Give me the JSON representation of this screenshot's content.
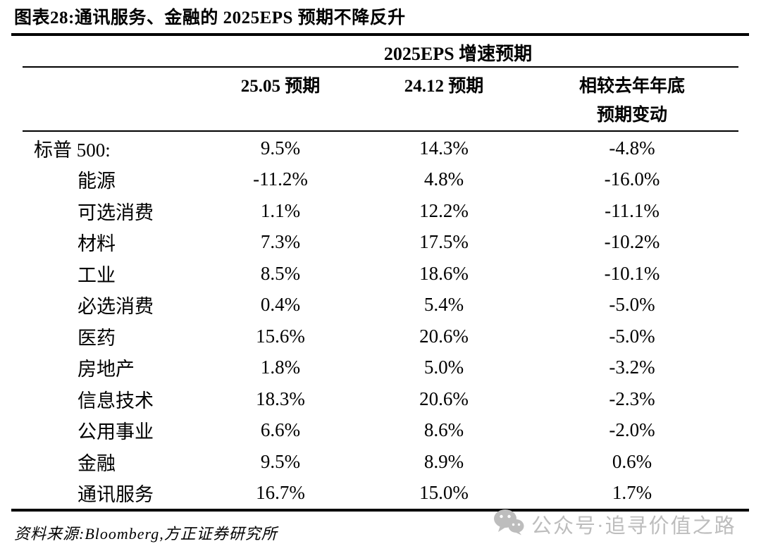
{
  "figure": {
    "title": "图表28:通讯服务、金融的 2025EPS 预期不降反升"
  },
  "chart_data": {
    "type": "table",
    "title": "图表28:通讯服务、金融的 2025EPS 预期不降反升",
    "group_header": "2025EPS 增速预期",
    "columns": [
      "25.05 预期",
      "24.12 预期",
      "相较去年年底 预期变动"
    ],
    "row_labels": [
      "标普 500:",
      "能源",
      "可选消费",
      "材料",
      "工业",
      "必选消费",
      "医药",
      "房地产",
      "信息技术",
      "公用事业",
      "金融",
      "通讯服务"
    ],
    "rows": [
      [
        "9.5%",
        "14.3%",
        "-4.8%"
      ],
      [
        "-11.2%",
        "4.8%",
        "-16.0%"
      ],
      [
        "1.1%",
        "12.2%",
        "-11.1%"
      ],
      [
        "7.3%",
        "17.5%",
        "-10.2%"
      ],
      [
        "8.5%",
        "18.6%",
        "-10.1%"
      ],
      [
        "0.4%",
        "5.4%",
        "-5.0%"
      ],
      [
        "15.6%",
        "20.6%",
        "-5.0%"
      ],
      [
        "1.8%",
        "5.0%",
        "-3.2%"
      ],
      [
        "18.3%",
        "20.6%",
        "-2.3%"
      ],
      [
        "6.6%",
        "8.6%",
        "-2.0%"
      ],
      [
        "9.5%",
        "8.9%",
        "0.6%"
      ],
      [
        "16.7%",
        "15.0%",
        "1.7%"
      ]
    ]
  },
  "header": {
    "group": "2025EPS 增速预期",
    "col1": "25.05 预期",
    "col2": "24.12 预期",
    "col3_line1": "相较去年年底",
    "col3_line2": "预期变动"
  },
  "footer": {
    "source": "资料来源:Bloomberg,方正证券研究所",
    "watermark_text": "公众号·追寻价值之路",
    "watermark_icon": "wechat-icon",
    "watermark_color": "#bdbdbd"
  }
}
